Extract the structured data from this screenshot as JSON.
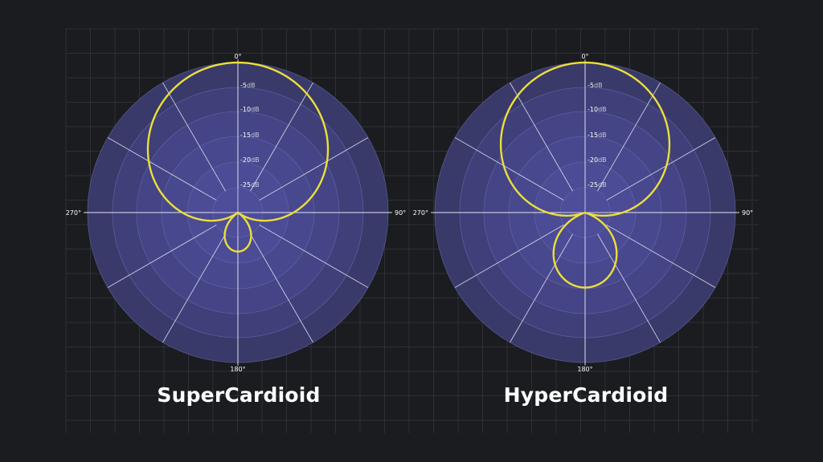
{
  "colors": {
    "background": "#1b1c20",
    "grid_line": "#2e3036",
    "ring_outer": "#3a3b6a",
    "ring_inner": "#4c4c98",
    "ring_stroke": "#6a6ba8",
    "spoke": "#e8e8f5",
    "pattern": "#ecdf3a",
    "label": "#ffffff"
  },
  "diagrams": [
    {
      "title": "SuperCardioid",
      "pattern": "supercardioid",
      "angle_labels": {
        "top": "0°",
        "right": "90°",
        "bottom": "180°",
        "left": "270°"
      },
      "db_labels": [
        {
          "value": "-5",
          "unit": "dB"
        },
        {
          "value": "-10",
          "unit": "dB"
        },
        {
          "value": "-15",
          "unit": "dB"
        },
        {
          "value": "-20",
          "unit": "dB"
        },
        {
          "value": "-25",
          "unit": "dB"
        }
      ]
    },
    {
      "title": "HyperCardioid",
      "pattern": "hypercardioid",
      "angle_labels": {
        "top": "0°",
        "right": "90°",
        "bottom": "180°",
        "left": "270°"
      },
      "db_labels": [
        {
          "value": "-5",
          "unit": "dB"
        },
        {
          "value": "-10",
          "unit": "dB"
        },
        {
          "value": "-15",
          "unit": "dB"
        },
        {
          "value": "-20",
          "unit": "dB"
        },
        {
          "value": "-25",
          "unit": "dB"
        }
      ]
    }
  ]
}
